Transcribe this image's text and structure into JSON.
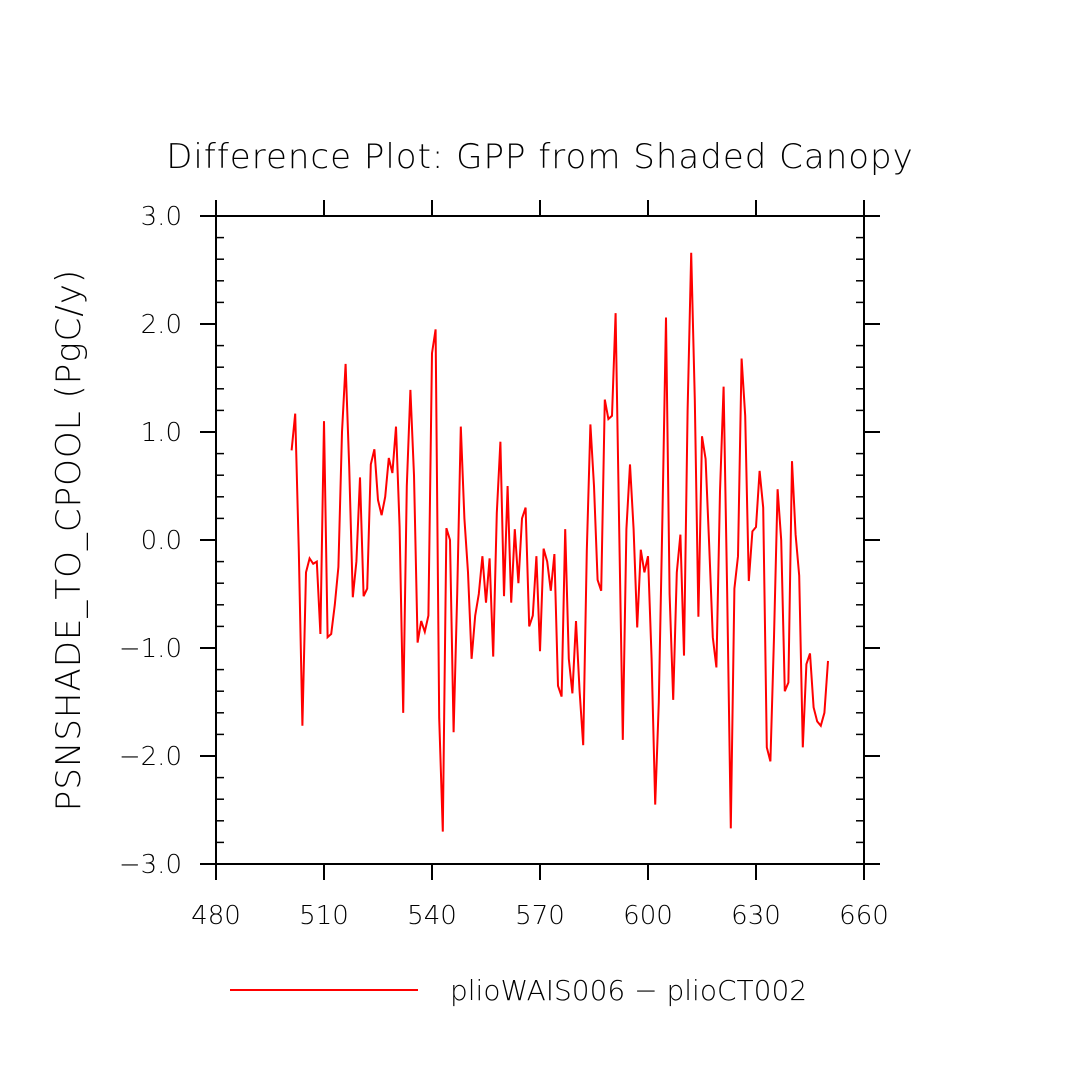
{
  "chart_data": {
    "type": "line",
    "title": "Difference Plot: GPP from Shaded Canopy",
    "xlabel": "",
    "ylabel": "PSNSHADE_TO_CPOOL  (PgC/y)",
    "xlim": [
      480,
      660
    ],
    "ylim": [
      -3.0,
      3.0
    ],
    "x_ticks": [
      480,
      510,
      540,
      570,
      600,
      630,
      660
    ],
    "x_tick_labels": [
      "480",
      "510",
      "540",
      "570",
      "600",
      "630",
      "660"
    ],
    "y_ticks": [
      -3.0,
      -2.0,
      -1.0,
      0.0,
      1.0,
      2.0,
      3.0
    ],
    "y_tick_labels": [
      "−3.0",
      "−2.0",
      "−1.0",
      "0.0",
      "1.0",
      "2.0",
      "3.0"
    ],
    "grid": false,
    "legend_position": "bottom",
    "series": [
      {
        "name": "plioWAIS006 − plioCT002",
        "color": "#ff0000",
        "x": [
          501,
          502,
          503,
          504,
          505,
          506,
          507,
          508,
          509,
          510,
          511,
          512,
          513,
          514,
          515,
          516,
          517,
          518,
          519,
          520,
          521,
          522,
          523,
          524,
          525,
          526,
          527,
          528,
          529,
          530,
          531,
          532,
          533,
          534,
          535,
          536,
          537,
          538,
          539,
          540,
          541,
          542,
          543,
          544,
          545,
          546,
          547,
          548,
          549,
          550,
          551,
          552,
          553,
          554,
          555,
          556,
          557,
          558,
          559,
          560,
          561,
          562,
          563,
          564,
          565,
          566,
          567,
          568,
          569,
          570,
          571,
          572,
          573,
          574,
          575,
          576,
          577,
          578,
          579,
          580,
          581,
          582,
          583,
          584,
          585,
          586,
          587,
          588,
          589,
          590,
          591,
          592,
          593,
          594,
          595,
          596,
          597,
          598,
          599,
          600,
          601,
          602,
          603,
          604,
          605,
          606,
          607,
          608,
          609,
          610,
          611,
          612,
          613,
          614,
          615,
          616,
          617,
          618,
          619,
          620,
          621,
          622,
          623,
          624,
          625,
          626,
          627,
          628,
          629,
          630,
          631,
          632,
          633,
          634,
          635,
          636,
          637,
          638,
          639,
          640,
          641,
          642,
          643,
          644,
          645,
          646,
          647,
          648,
          649,
          650
        ],
        "values": [
          0.83,
          1.17,
          -0.1,
          -1.72,
          -0.3,
          -0.17,
          -0.22,
          -0.2,
          -0.87,
          1.1,
          -0.9,
          -0.87,
          -0.6,
          -0.25,
          1.0,
          1.63,
          0.68,
          -0.53,
          -0.2,
          0.58,
          -0.52,
          -0.45,
          0.7,
          0.84,
          0.37,
          0.23,
          0.4,
          0.76,
          0.62,
          1.05,
          0.12,
          -1.6,
          0.5,
          1.39,
          0.6,
          -0.95,
          -0.75,
          -0.85,
          -0.7,
          1.73,
          1.95,
          -1.65,
          -2.7,
          0.11,
          0.0,
          -1.78,
          -0.5,
          1.05,
          0.2,
          -0.3,
          -1.1,
          -0.7,
          -0.5,
          -0.15,
          -0.58,
          -0.17,
          -1.08,
          0.25,
          0.91,
          -0.52,
          0.5,
          -0.58,
          0.1,
          -0.4,
          0.2,
          0.3,
          -0.8,
          -0.7,
          -0.15,
          -1.03,
          -0.08,
          -0.2,
          -0.47,
          -0.13,
          -1.35,
          -1.45,
          0.1,
          -1.1,
          -1.42,
          -0.75,
          -1.4,
          -1.9,
          -0.1,
          1.07,
          0.5,
          -0.37,
          -0.47,
          1.3,
          1.12,
          1.15,
          2.1,
          0.1,
          -1.85,
          0.1,
          0.7,
          0.1,
          -0.81,
          -0.09,
          -0.3,
          -0.15,
          -1.1,
          -2.45,
          -1.5,
          0.2,
          2.06,
          -0.5,
          -1.48,
          -0.3,
          0.05,
          -1.07,
          1.2,
          2.66,
          1.3,
          -0.71,
          0.96,
          0.75,
          -0.05,
          -0.9,
          -1.18,
          0.45,
          1.42,
          -0.5,
          -2.67,
          -0.45,
          -0.15,
          1.68,
          1.15,
          -0.38,
          0.08,
          0.12,
          0.64,
          0.3,
          -1.92,
          -2.05,
          -0.9,
          0.47,
          0.0,
          -1.4,
          -1.32,
          0.73,
          0.05,
          -0.33,
          -1.92,
          -1.15,
          -1.05,
          -1.55,
          -1.68,
          -1.72,
          -1.6,
          -1.12
        ]
      }
    ],
    "legend": [
      {
        "label": "plioWAIS006 − plioCT002",
        "color": "#ff0000"
      }
    ]
  }
}
